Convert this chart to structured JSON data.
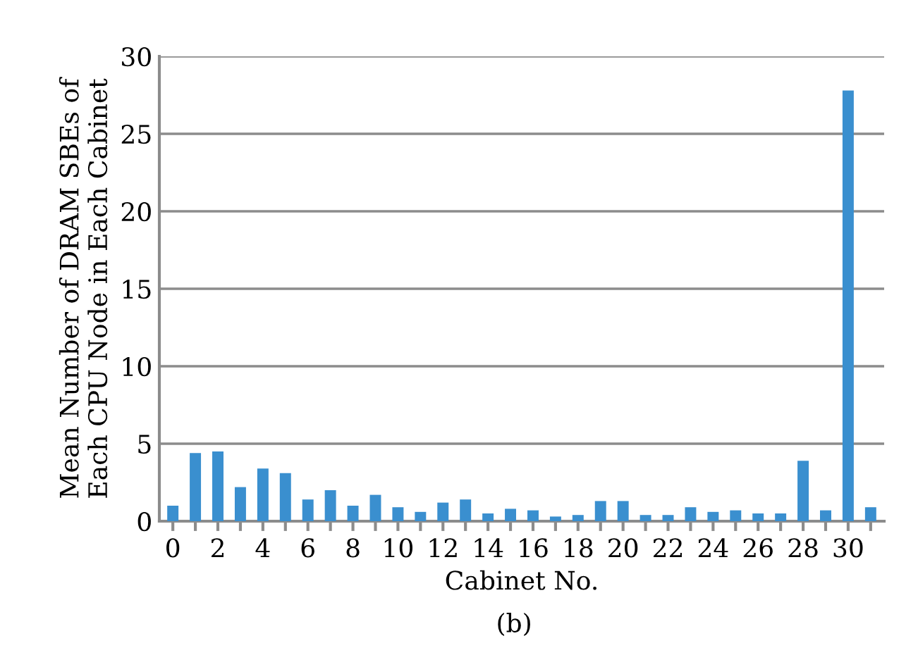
{
  "chart_data": {
    "type": "bar",
    "categories": [
      "0",
      null,
      "2",
      null,
      "4",
      null,
      "6",
      null,
      "8",
      null,
      "10",
      null,
      "12",
      null,
      "14",
      null,
      "16",
      null,
      "18",
      null,
      "20",
      null,
      "22",
      null,
      "24",
      null,
      "26",
      null,
      "28",
      null,
      "30",
      null
    ],
    "values": [
      1.0,
      4.4,
      4.5,
      2.2,
      3.4,
      3.1,
      1.4,
      2.0,
      1.0,
      1.7,
      0.9,
      0.6,
      1.2,
      1.4,
      0.5,
      0.8,
      0.7,
      0.3,
      0.4,
      1.3,
      1.3,
      0.4,
      0.4,
      0.9,
      0.6,
      0.7,
      0.5,
      0.5,
      3.9,
      0.7,
      27.8,
      0.9
    ],
    "color": "#3a8fcf",
    "xlabel": "Cabinet No.",
    "ylabel": "Mean Number of DRAM SBEs of\nEach CPU Node in Each Cabinet",
    "ylim": [
      0,
      30
    ],
    "yticks": [
      0,
      5,
      10,
      15,
      20,
      25,
      30
    ],
    "grid": "y",
    "annotations": [
      "(b)"
    ]
  }
}
